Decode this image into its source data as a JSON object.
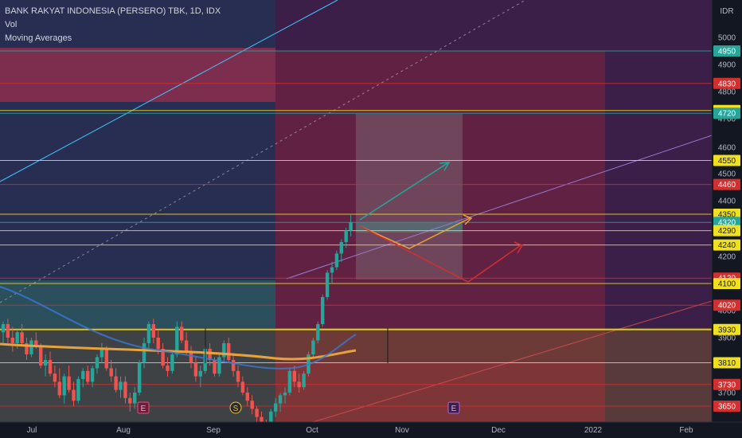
{
  "header": {
    "title": "BANK RAKYAT INDONESIA (PERSERO) TBK, 1D, IDX",
    "indicator_vol": "Vol",
    "indicator_ma": "Moving Averages"
  },
  "chart_data": {
    "type": "candlestick",
    "currency": "IDR",
    "ylim": [
      3600,
      5100
    ],
    "y_ticks": [
      3700,
      3800,
      3900,
      4000,
      4100,
      4200,
      4300,
      4400,
      4500,
      4600,
      4700,
      4800,
      4900,
      5000
    ],
    "x_labels": [
      "Jul",
      "Aug",
      "Sep",
      "Oct",
      "Nov",
      "Dec",
      "2022",
      "Feb"
    ],
    "candles": [
      {
        "o": 3920,
        "h": 3960,
        "l": 3880,
        "c": 3950
      },
      {
        "o": 3950,
        "h": 3970,
        "l": 3880,
        "c": 3900
      },
      {
        "o": 3900,
        "h": 3940,
        "l": 3850,
        "c": 3880
      },
      {
        "o": 3880,
        "h": 3930,
        "l": 3860,
        "c": 3920
      },
      {
        "o": 3920,
        "h": 3950,
        "l": 3870,
        "c": 3880
      },
      {
        "o": 3880,
        "h": 3900,
        "l": 3820,
        "c": 3840
      },
      {
        "o": 3840,
        "h": 3900,
        "l": 3830,
        "c": 3890
      },
      {
        "o": 3890,
        "h": 3920,
        "l": 3860,
        "c": 3870
      },
      {
        "o": 3870,
        "h": 3880,
        "l": 3790,
        "c": 3800
      },
      {
        "o": 3800,
        "h": 3840,
        "l": 3760,
        "c": 3820
      },
      {
        "o": 3820,
        "h": 3850,
        "l": 3760,
        "c": 3770
      },
      {
        "o": 3770,
        "h": 3800,
        "l": 3720,
        "c": 3740
      },
      {
        "o": 3740,
        "h": 3790,
        "l": 3680,
        "c": 3690
      },
      {
        "o": 3690,
        "h": 3770,
        "l": 3660,
        "c": 3760
      },
      {
        "o": 3760,
        "h": 3800,
        "l": 3700,
        "c": 3710
      },
      {
        "o": 3710,
        "h": 3740,
        "l": 3650,
        "c": 3670
      },
      {
        "o": 3670,
        "h": 3760,
        "l": 3660,
        "c": 3750
      },
      {
        "o": 3750,
        "h": 3790,
        "l": 3720,
        "c": 3780
      },
      {
        "o": 3780,
        "h": 3800,
        "l": 3730,
        "c": 3740
      },
      {
        "o": 3740,
        "h": 3800,
        "l": 3720,
        "c": 3790
      },
      {
        "o": 3790,
        "h": 3840,
        "l": 3770,
        "c": 3830
      },
      {
        "o": 3830,
        "h": 3880,
        "l": 3810,
        "c": 3860
      },
      {
        "o": 3860,
        "h": 3870,
        "l": 3780,
        "c": 3790
      },
      {
        "o": 3790,
        "h": 3820,
        "l": 3740,
        "c": 3760
      },
      {
        "o": 3760,
        "h": 3790,
        "l": 3700,
        "c": 3710
      },
      {
        "o": 3710,
        "h": 3760,
        "l": 3680,
        "c": 3740
      },
      {
        "o": 3740,
        "h": 3760,
        "l": 3660,
        "c": 3680
      },
      {
        "o": 3680,
        "h": 3700,
        "l": 3630,
        "c": 3660
      },
      {
        "o": 3660,
        "h": 3720,
        "l": 3640,
        "c": 3700
      },
      {
        "o": 3700,
        "h": 3820,
        "l": 3690,
        "c": 3810
      },
      {
        "o": 3810,
        "h": 3900,
        "l": 3790,
        "c": 3880
      },
      {
        "o": 3880,
        "h": 3960,
        "l": 3860,
        "c": 3950
      },
      {
        "o": 3950,
        "h": 3970,
        "l": 3880,
        "c": 3900
      },
      {
        "o": 3900,
        "h": 3930,
        "l": 3840,
        "c": 3860
      },
      {
        "o": 3860,
        "h": 3880,
        "l": 3790,
        "c": 3800
      },
      {
        "o": 3800,
        "h": 3830,
        "l": 3760,
        "c": 3780
      },
      {
        "o": 3780,
        "h": 3850,
        "l": 3770,
        "c": 3840
      },
      {
        "o": 3840,
        "h": 3960,
        "l": 3830,
        "c": 3940
      },
      {
        "o": 3940,
        "h": 3960,
        "l": 3880,
        "c": 3890
      },
      {
        "o": 3890,
        "h": 3920,
        "l": 3840,
        "c": 3850
      },
      {
        "o": 3850,
        "h": 3870,
        "l": 3790,
        "c": 3810
      },
      {
        "o": 3810,
        "h": 3830,
        "l": 3740,
        "c": 3760
      },
      {
        "o": 3760,
        "h": 3800,
        "l": 3720,
        "c": 3780
      },
      {
        "o": 3780,
        "h": 3870,
        "l": 3770,
        "c": 3860
      },
      {
        "o": 3860,
        "h": 3880,
        "l": 3800,
        "c": 3820
      },
      {
        "o": 3820,
        "h": 3830,
        "l": 3760,
        "c": 3770
      },
      {
        "o": 3770,
        "h": 3840,
        "l": 3760,
        "c": 3830
      },
      {
        "o": 3830,
        "h": 3890,
        "l": 3810,
        "c": 3880
      },
      {
        "o": 3880,
        "h": 3900,
        "l": 3810,
        "c": 3820
      },
      {
        "o": 3820,
        "h": 3840,
        "l": 3760,
        "c": 3780
      },
      {
        "o": 3780,
        "h": 3800,
        "l": 3720,
        "c": 3740
      },
      {
        "o": 3740,
        "h": 3760,
        "l": 3690,
        "c": 3700
      },
      {
        "o": 3700,
        "h": 3720,
        "l": 3650,
        "c": 3670
      },
      {
        "o": 3670,
        "h": 3690,
        "l": 3620,
        "c": 3640
      },
      {
        "o": 3640,
        "h": 3650,
        "l": 3590,
        "c": 3610
      },
      {
        "o": 3610,
        "h": 3630,
        "l": 3560,
        "c": 3580
      },
      {
        "o": 3580,
        "h": 3600,
        "l": 3550,
        "c": 3570
      },
      {
        "o": 3570,
        "h": 3640,
        "l": 3560,
        "c": 3630
      },
      {
        "o": 3630,
        "h": 3680,
        "l": 3610,
        "c": 3660
      },
      {
        "o": 3660,
        "h": 3700,
        "l": 3630,
        "c": 3690
      },
      {
        "o": 3690,
        "h": 3720,
        "l": 3660,
        "c": 3700
      },
      {
        "o": 3700,
        "h": 3790,
        "l": 3690,
        "c": 3780
      },
      {
        "o": 3780,
        "h": 3800,
        "l": 3720,
        "c": 3740
      },
      {
        "o": 3740,
        "h": 3770,
        "l": 3700,
        "c": 3720
      },
      {
        "o": 3720,
        "h": 3780,
        "l": 3710,
        "c": 3770
      },
      {
        "o": 3770,
        "h": 3850,
        "l": 3760,
        "c": 3840
      },
      {
        "o": 3840,
        "h": 3900,
        "l": 3830,
        "c": 3890
      },
      {
        "o": 3890,
        "h": 3960,
        "l": 3880,
        "c": 3950
      },
      {
        "o": 3950,
        "h": 4060,
        "l": 3940,
        "c": 4050
      },
      {
        "o": 4050,
        "h": 4150,
        "l": 4040,
        "c": 4140
      },
      {
        "o": 4140,
        "h": 4180,
        "l": 4100,
        "c": 4160
      },
      {
        "o": 4160,
        "h": 4220,
        "l": 4150,
        "c": 4210
      },
      {
        "o": 4210,
        "h": 4260,
        "l": 4180,
        "c": 4250
      },
      {
        "o": 4250,
        "h": 4300,
        "l": 4230,
        "c": 4290
      },
      {
        "o": 4290,
        "h": 4350,
        "l": 4270,
        "c": 4320
      }
    ],
    "price_lines": [
      4950,
      4830,
      4730,
      4720,
      4550,
      4460,
      4350,
      4320,
      4290,
      4240,
      4120,
      4100,
      4020,
      3930,
      3810,
      3730,
      3650
    ],
    "price_labels": [
      {
        "value": "4950",
        "color": "#26a69a"
      },
      {
        "value": "4830",
        "color": "#d32f2f"
      },
      {
        "value": "4730",
        "color": "#f0e020"
      },
      {
        "value": "4720",
        "color": "#26a69a"
      },
      {
        "value": "4550",
        "color": "#f0e020"
      },
      {
        "value": "4460",
        "color": "#d32f2f"
      },
      {
        "value": "4350",
        "color": "#f0e020"
      },
      {
        "value": "4320",
        "color": "#26a69a"
      },
      {
        "value": "4290",
        "color": "#f0e020"
      },
      {
        "value": "4240",
        "color": "#f0e020"
      },
      {
        "value": "4120",
        "color": "#d32f2f"
      },
      {
        "value": "4100",
        "color": "#f0e020"
      },
      {
        "value": "4020",
        "color": "#d32f2f"
      },
      {
        "value": "3930",
        "color": "#f0e020"
      },
      {
        "value": "3810",
        "color": "#f0e020"
      },
      {
        "value": "3730",
        "color": "#d32f2f"
      },
      {
        "value": "3650",
        "color": "#d32f2f"
      }
    ],
    "event_markers": [
      "E",
      "S",
      "E"
    ],
    "colors": {
      "up": "#26a69a",
      "down": "#ef5350",
      "background": "#131722"
    }
  }
}
